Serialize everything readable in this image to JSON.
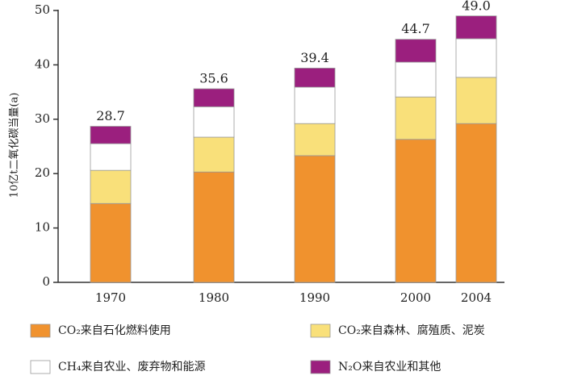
{
  "chart_data": {
    "type": "stacked_bar",
    "y_label": "10亿t二氧化碳当量(a)",
    "categories": [
      "1970",
      "1980",
      "1990",
      "2000",
      "2004"
    ],
    "series": [
      {
        "name": "CO₂来自石化燃料使用",
        "color": "#f0922e",
        "values": [
          14.5,
          20.3,
          23.3,
          26.3,
          29.2
        ]
      },
      {
        "name": "CO₂来自森林、腐殖质、泥炭",
        "color": "#f9e07a",
        "values": [
          6.1,
          6.4,
          5.9,
          7.8,
          8.5
        ]
      },
      {
        "name": "CH₄来自农业、废弃物和能源",
        "color": "#ffffff",
        "values": [
          4.9,
          5.6,
          6.7,
          6.4,
          7.1
        ]
      },
      {
        "name": "N₂O来自农业和其他",
        "color": "#9b1f7e",
        "values": [
          3.2,
          3.3,
          3.5,
          4.2,
          4.2
        ]
      }
    ],
    "totals": [
      28.7,
      35.6,
      39.4,
      44.7,
      49.0
    ],
    "total_labels": [
      "28.7",
      "35.6",
      "39.4",
      "44.7",
      "49.0"
    ],
    "ylim": [
      0,
      50
    ],
    "yticks": [
      0,
      10,
      20,
      30,
      40,
      50
    ]
  }
}
